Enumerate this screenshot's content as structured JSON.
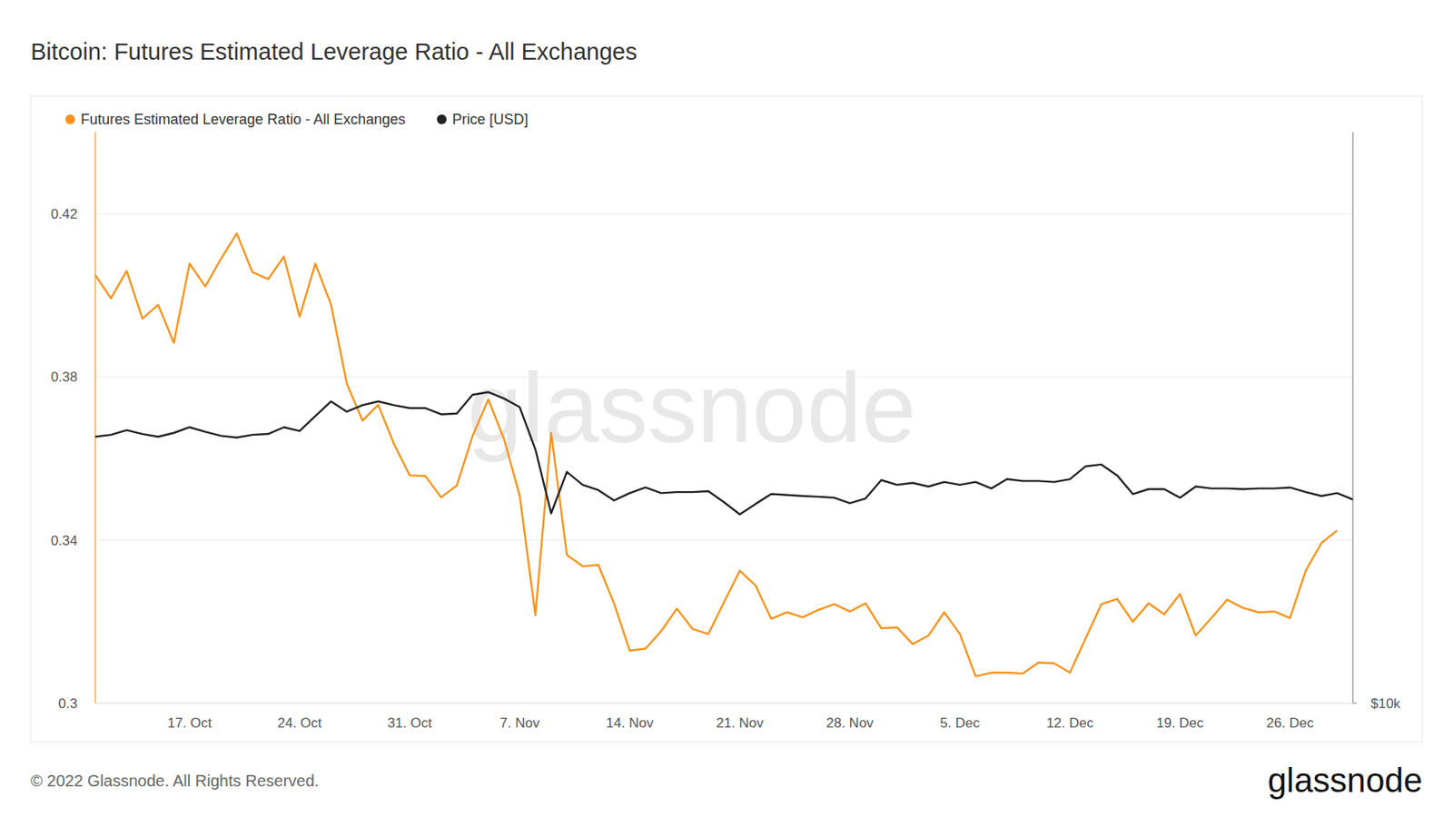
{
  "chart_data": {
    "type": "line",
    "title": "Bitcoin: Futures Estimated Leverage Ratio - All Exchanges",
    "categories": [
      null,
      null,
      null,
      null,
      null,
      null,
      "17. Oct",
      null,
      null,
      null,
      null,
      null,
      null,
      "24. Oct",
      null,
      null,
      null,
      null,
      null,
      null,
      "31. Oct",
      null,
      null,
      null,
      null,
      null,
      null,
      "7. Nov",
      null,
      null,
      null,
      null,
      null,
      null,
      "14. Nov",
      null,
      null,
      null,
      null,
      null,
      null,
      "21. Nov",
      null,
      null,
      null,
      null,
      null,
      null,
      "28. Nov",
      null,
      null,
      null,
      null,
      null,
      null,
      "5. Dec",
      null,
      null,
      null,
      null,
      null,
      null,
      "12. Dec",
      null,
      null,
      null,
      null,
      null,
      null,
      "19. Dec",
      null,
      null,
      null,
      null,
      null,
      null,
      "26. Dec",
      null,
      null,
      null,
      null
    ],
    "series": [
      {
        "name": "Futures Estimated Leverage Ratio - All Exchanges",
        "color": "#f7931a",
        "values": [
          0.405,
          0.3993,
          0.406,
          0.3943,
          0.3977,
          0.3884,
          0.4078,
          0.4022,
          0.409,
          0.4152,
          0.4057,
          0.404,
          0.4095,
          0.3948,
          0.4078,
          0.3977,
          0.3784,
          0.3693,
          0.3732,
          0.3636,
          0.3559,
          0.3557,
          0.3505,
          0.3534,
          0.3655,
          0.3745,
          0.3648,
          0.3509,
          0.3216,
          0.3663,
          0.3364,
          0.3336,
          0.3339,
          0.3245,
          0.3129,
          0.3134,
          0.3177,
          0.3232,
          0.3182,
          0.317,
          0.3248,
          0.3325,
          0.3289,
          0.3207,
          0.3223,
          0.3211,
          0.3229,
          0.3243,
          0.3225,
          0.3245,
          0.3184,
          0.3186,
          0.3145,
          0.3166,
          0.3223,
          0.317,
          0.3066,
          0.3075,
          0.3075,
          0.3073,
          0.31,
          0.3098,
          0.3075,
          0.3159,
          0.3243,
          0.3256,
          0.32,
          0.3245,
          0.3218,
          0.3268,
          0.3166,
          0.3209,
          0.3254,
          0.3234,
          0.3223,
          0.3225,
          0.3209,
          0.3325,
          0.3393,
          0.3424,
          null
        ]
      },
      {
        "name": "Price [USD]",
        "color": "#222222",
        "axis": "y2",
        "values": [
          19190,
          19280,
          19500,
          19320,
          19190,
          19370,
          19640,
          19420,
          19230,
          19150,
          19280,
          19320,
          19640,
          19460,
          20180,
          20920,
          20400,
          20730,
          20920,
          20730,
          20580,
          20580,
          20270,
          20310,
          21260,
          21400,
          21070,
          20630,
          18600,
          15910,
          17610,
          17060,
          16840,
          16420,
          16720,
          16950,
          16720,
          16760,
          16760,
          16800,
          16350,
          15870,
          16280,
          16680,
          16640,
          16600,
          16570,
          16530,
          16310,
          16500,
          17260,
          17060,
          17140,
          16990,
          17180,
          17060,
          17180,
          16910,
          17300,
          17220,
          17220,
          17180,
          17300,
          17850,
          17930,
          17460,
          16680,
          16880,
          16880,
          16530,
          16990,
          16910,
          16910,
          16880,
          16910,
          16910,
          16950,
          16760,
          16600,
          16720,
          16460
        ]
      }
    ],
    "ylim": [
      0.3,
      0.44
    ],
    "yticks": [
      0.3,
      0.34,
      0.38,
      0.42
    ],
    "y2lim": [
      10000,
      40400
    ],
    "y2ticks": [
      {
        "value": 10000,
        "label": "$10k"
      }
    ],
    "log": "y2",
    "grid": true,
    "legend": "top-left"
  },
  "footer": {
    "copyright": "© 2022 Glassnode. All Rights Reserved.",
    "brand": "glassnode",
    "watermark": "glassnode"
  }
}
